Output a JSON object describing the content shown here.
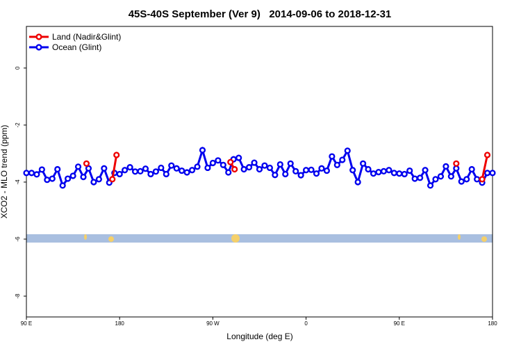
{
  "chart_data": {
    "type": "line",
    "title": "45S-40S September (Ver 9)   2014-09-06 to 2018-12-31",
    "x_label": "Longitude (deg E)",
    "y_label": "XCO2 - MLO trend (ppm)",
    "xlim": [
      90,
      540
    ],
    "xticks": [
      {
        "value": 90,
        "label": "90 E"
      },
      180,
      {
        "value": 270,
        "label": "90 W"
      },
      {
        "value": 360,
        "label": "0"
      },
      {
        "value": 450,
        "label": "90 E"
      },
      {
        "value": 540,
        "label": "180"
      }
    ],
    "ylim": [
      -8.73,
      1.46
    ],
    "yticks": [
      -8,
      -6,
      -4,
      -2,
      0
    ],
    "legend": "top-left",
    "series": [
      {
        "name": "Land (Nadir&Glint)",
        "color": "#ee0000",
        "x": [
          148,
          null,
          173,
          177,
          null,
          287,
          291,
          null,
          505,
          null,
          530,
          535
        ],
        "values": [
          -3.35,
          null,
          -3.9,
          -3.05,
          null,
          -3.3,
          -3.55,
          null,
          -3.35,
          null,
          -3.9,
          -3.05
        ]
      },
      {
        "name": "Ocean (Glint)",
        "color": "#0000ee",
        "x": [
          90,
          95,
          100,
          105,
          110,
          115,
          120,
          125,
          130,
          135,
          140,
          145,
          150,
          155,
          160,
          165,
          170,
          175,
          180,
          185,
          190,
          195,
          200,
          205,
          210,
          215,
          220,
          225,
          230,
          235,
          240,
          245,
          250,
          255,
          260,
          265,
          270,
          275,
          280,
          285,
          290,
          295,
          300,
          305,
          310,
          315,
          320,
          325,
          330,
          335,
          340,
          345,
          350,
          355,
          360,
          365,
          370,
          375,
          380,
          385,
          390,
          395,
          400,
          405,
          410,
          415,
          420,
          425,
          430,
          435,
          440,
          445,
          450,
          455,
          460,
          465,
          470,
          475,
          480,
          485,
          490,
          495,
          500,
          505,
          510,
          515,
          520,
          525,
          530,
          535,
          540
        ],
        "values": [
          -3.68,
          -3.68,
          -3.73,
          -3.56,
          -3.92,
          -3.88,
          -3.55,
          -4.12,
          -3.88,
          -3.78,
          -3.46,
          -3.82,
          -3.52,
          -4.0,
          -3.9,
          -3.52,
          -4.02,
          -3.68,
          -3.72,
          -3.58,
          -3.48,
          -3.63,
          -3.62,
          -3.53,
          -3.72,
          -3.63,
          -3.5,
          -3.72,
          -3.42,
          -3.52,
          -3.6,
          -3.66,
          -3.58,
          -3.46,
          -2.88,
          -3.5,
          -3.33,
          -3.24,
          -3.4,
          -3.66,
          -3.2,
          -3.15,
          -3.55,
          -3.48,
          -3.32,
          -3.55,
          -3.42,
          -3.5,
          -3.75,
          -3.38,
          -3.72,
          -3.35,
          -3.62,
          -3.76,
          -3.58,
          -3.57,
          -3.7,
          -3.52,
          -3.6,
          -3.1,
          -3.4,
          -3.22,
          -2.9,
          -3.58,
          -4.0,
          -3.35,
          -3.55,
          -3.7,
          -3.65,
          -3.62,
          -3.58,
          -3.68,
          -3.7,
          -3.72,
          -3.6,
          -3.88,
          -3.85,
          -3.58,
          -4.12,
          -3.9,
          -3.8,
          -3.45,
          -3.8,
          -3.52,
          -3.98,
          -3.9,
          -3.55,
          -3.9,
          -4.02,
          -3.68,
          -3.68
        ]
      }
    ]
  }
}
